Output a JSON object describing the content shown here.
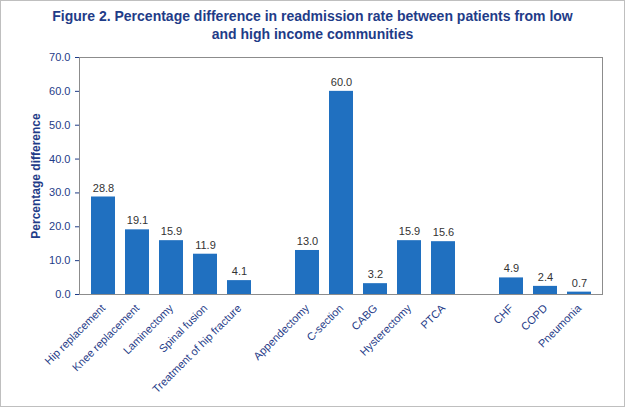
{
  "chart_data": {
    "type": "bar",
    "title": "Figure 2. Percentage difference in readmission rate between patients from low and high income communities",
    "y_label": "Percentage difference",
    "categories": [
      "Hip replacement",
      "Knee replacement",
      "Laminectomy",
      "Spinal fusion",
      "Treatment of hip fracture",
      null,
      "Appendectomy",
      "C-section",
      "CABG",
      "Hysterectomy",
      "PTCA",
      null,
      "CHF",
      "COPD",
      "Pneumonia"
    ],
    "values": [
      28.8,
      19.1,
      15.9,
      11.9,
      4.1,
      null,
      13.0,
      60.0,
      3.2,
      15.9,
      15.6,
      null,
      4.9,
      2.4,
      0.7
    ],
    "value_labels": [
      "28.8",
      "19.1",
      "15.9",
      "11.9",
      "4.1",
      null,
      "13.0",
      "60.0",
      "3.2",
      "15.9",
      "15.6",
      null,
      "4.9",
      "2.4",
      "0.7"
    ],
    "color": "#2070c0",
    "ylim": [
      0,
      70
    ],
    "yticks": [
      {
        "value": 0,
        "label": "0.0"
      },
      {
        "value": 10,
        "label": "10.0"
      },
      {
        "value": 20,
        "label": "20.0"
      },
      {
        "value": 30,
        "label": "30.0"
      },
      {
        "value": 40,
        "label": "40.0"
      },
      {
        "value": 50,
        "label": "50.0"
      },
      {
        "value": 60,
        "label": "60.0"
      },
      {
        "value": 70,
        "label": "70.0"
      }
    ],
    "data_labels": true,
    "grid": false
  }
}
